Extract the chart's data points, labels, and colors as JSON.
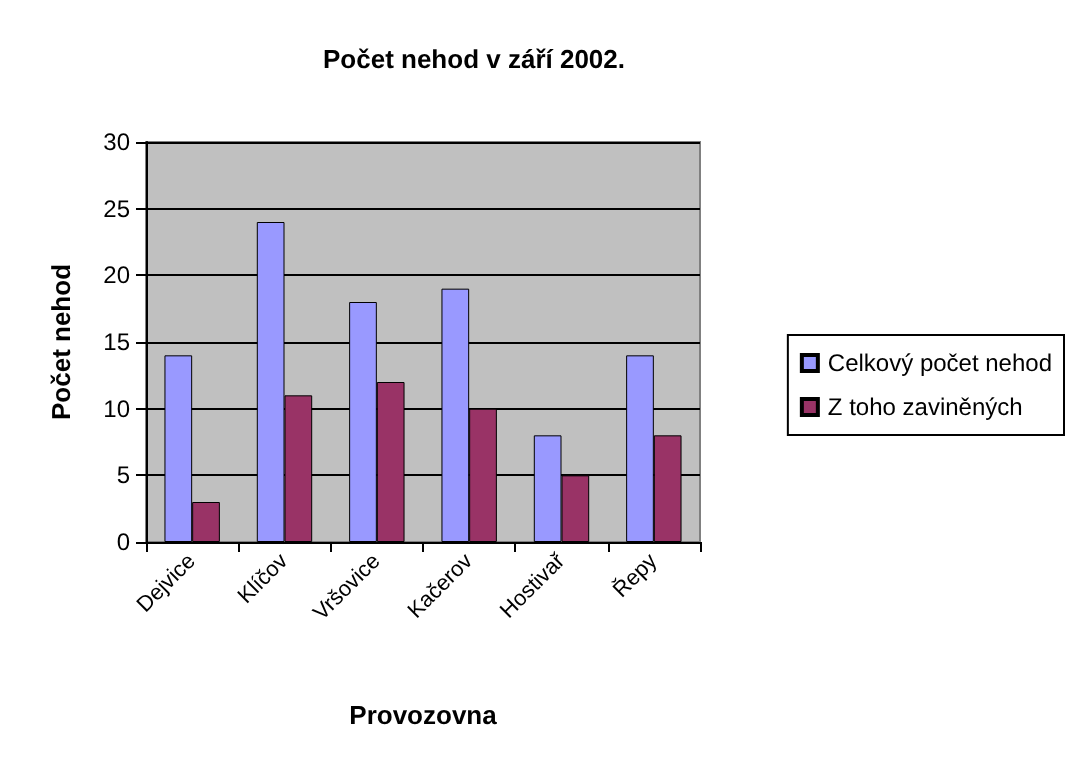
{
  "chart_data": {
    "type": "bar",
    "title": "Počet nehod v září 2002.",
    "xlabel": "Provozovna",
    "ylabel": "Počet nehod",
    "categories": [
      "Dejvice",
      "Klíčov",
      "Vršovice",
      "Kačerov",
      "Hostivař",
      "Řepy"
    ],
    "series": [
      {
        "name": "Celkový počet nehod",
        "color": "#9999ff",
        "values": [
          14,
          24,
          18,
          19,
          8,
          14
        ]
      },
      {
        "name": "Z toho zaviněných",
        "color": "#993366",
        "values": [
          3,
          11,
          12,
          10,
          5,
          8
        ]
      }
    ],
    "ylim": [
      0,
      30
    ],
    "yticks": [
      0,
      5,
      10,
      15,
      20,
      25,
      30
    ],
    "grid": "y",
    "legend": "right"
  }
}
